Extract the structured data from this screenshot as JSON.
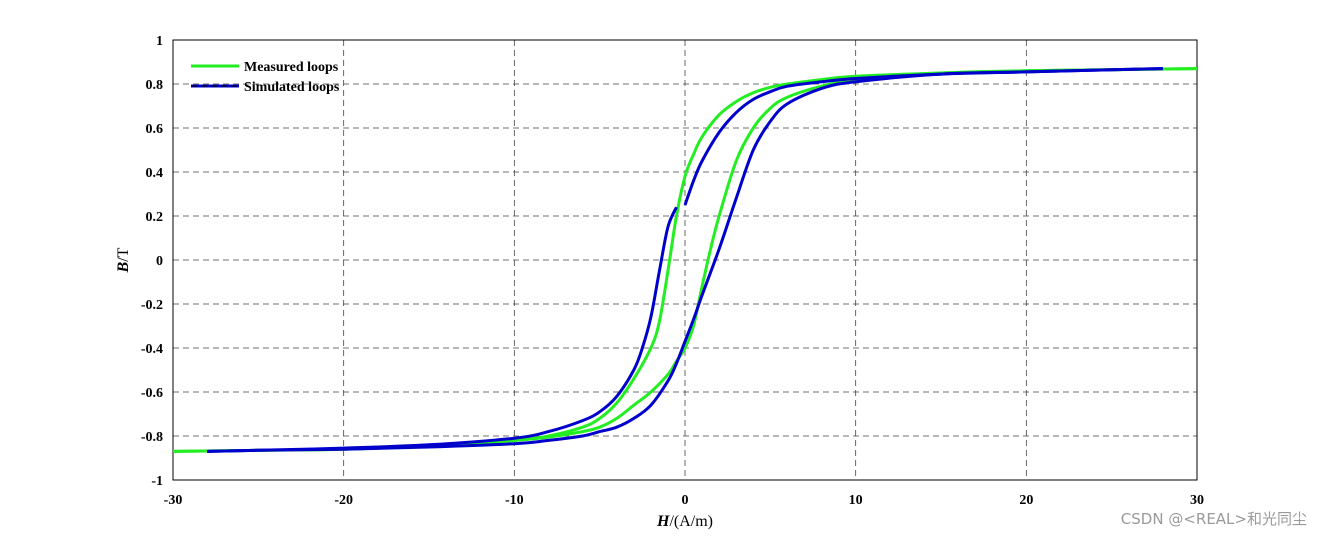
{
  "chart_data": {
    "type": "line",
    "xlabel_italic": "H",
    "xlabel_rest": "/(A/m)",
    "ylabel_italic": "B",
    "ylabel_rest": "/T",
    "xlim": [
      -30,
      30
    ],
    "ylim": [
      -1,
      1
    ],
    "x_ticks": [
      -30,
      -20,
      -10,
      0,
      10,
      20,
      30
    ],
    "y_ticks": [
      -1,
      -0.8,
      -0.6,
      -0.4,
      -0.2,
      0,
      0.2,
      0.4,
      0.6,
      0.8,
      1
    ],
    "x_tick_labels": [
      "-30",
      "-20",
      "-10",
      "0",
      "10",
      "20",
      "30"
    ],
    "y_tick_labels": [
      "-1",
      "-0.8",
      "-0.6",
      "-0.4",
      "-0.2",
      "0",
      "0.2",
      "0.4",
      "0.6",
      "0.8",
      "1"
    ],
    "grid": true,
    "grid_style": "dashed",
    "legend_position": "top-left",
    "series": [
      {
        "name": "Measured loops",
        "color": "#22ee22",
        "branches": [
          {
            "x": [
              -30,
              -25,
              -20,
              -15,
              -10,
              -8,
              -6,
              -5,
              -4,
              -3,
              -2,
              -1.5,
              -1,
              -0.5,
              0,
              0.5,
              1,
              2,
              3,
              4,
              5,
              6,
              8,
              10,
              15,
              20,
              25,
              30
            ],
            "y": [
              -0.87,
              -0.865,
              -0.86,
              -0.845,
              -0.82,
              -0.8,
              -0.76,
              -0.72,
              -0.65,
              -0.54,
              -0.4,
              -0.28,
              -0.05,
              0.2,
              0.38,
              0.48,
              0.56,
              0.66,
              0.72,
              0.76,
              0.785,
              0.8,
              0.82,
              0.835,
              0.85,
              0.86,
              0.865,
              0.87
            ]
          },
          {
            "x": [
              30,
              25,
              20,
              15,
              10,
              8,
              6,
              5,
              4,
              3,
              2,
              1.5,
              1,
              0.5,
              0,
              -0.5,
              -1,
              -2,
              -3,
              -4,
              -5,
              -6,
              -8,
              -10,
              -15,
              -20,
              -25,
              -30
            ],
            "y": [
              0.87,
              0.865,
              0.86,
              0.85,
              0.82,
              0.79,
              0.74,
              0.69,
              0.6,
              0.45,
              0.2,
              0.05,
              -0.12,
              -0.3,
              -0.4,
              -0.46,
              -0.52,
              -0.6,
              -0.66,
              -0.72,
              -0.76,
              -0.78,
              -0.805,
              -0.82,
              -0.845,
              -0.86,
              -0.865,
              -0.87
            ]
          }
        ]
      },
      {
        "name": "Simulated loops",
        "color": "#0000cc",
        "branches": [
          {
            "x": [
              -28,
              -25,
              -20,
              -15,
              -10,
              -8,
              -6,
              -5,
              -4,
              -3,
              -2.5,
              -2,
              -1.5,
              -1,
              -0.5
            ],
            "y": [
              -0.87,
              -0.865,
              -0.855,
              -0.84,
              -0.81,
              -0.78,
              -0.73,
              -0.69,
              -0.62,
              -0.5,
              -0.4,
              -0.26,
              -0.05,
              0.15,
              0.24
            ]
          },
          {
            "x": [
              0,
              0.5,
              1,
              2,
              3,
              4,
              5,
              6,
              8,
              10,
              15,
              20,
              25,
              28
            ],
            "y": [
              0.25,
              0.36,
              0.45,
              0.58,
              0.67,
              0.73,
              0.765,
              0.79,
              0.81,
              0.825,
              0.845,
              0.855,
              0.865,
              0.87
            ]
          },
          {
            "x": [
              28,
              25,
              20,
              15,
              10,
              8,
              6,
              5,
              4,
              3,
              2,
              1,
              0.5,
              0,
              -0.5,
              -1,
              -2,
              -3,
              -4,
              -5,
              -6,
              -8,
              -10,
              -15,
              -20,
              -25,
              -28
            ],
            "y": [
              0.87,
              0.865,
              0.855,
              0.845,
              0.81,
              0.78,
              0.71,
              0.63,
              0.5,
              0.28,
              0.05,
              -0.16,
              -0.27,
              -0.37,
              -0.47,
              -0.55,
              -0.66,
              -0.72,
              -0.76,
              -0.78,
              -0.8,
              -0.82,
              -0.835,
              -0.85,
              -0.86,
              -0.865,
              -0.87
            ]
          }
        ]
      }
    ]
  },
  "watermark": "CSDN @<REAL>和光同尘"
}
